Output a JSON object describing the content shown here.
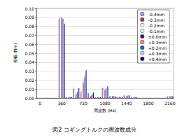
{
  "chart_data": {
    "type": "bar",
    "title": "図2 コギングトルクの周波数成分",
    "x_label": "周波数 (Hz)",
    "y_label": "振幅 (Nm)",
    "categories": [
      0,
      null,
      null,
      360,
      null,
      null,
      720,
      null,
      null,
      1080,
      null,
      null,
      1440,
      null,
      null,
      1800,
      null,
      null,
      2160
    ],
    "series": [
      {
        "name": "-0.4mm",
        "color": "#9999ff",
        "values": [
          0,
          0,
          0,
          0.088,
          0.001,
          0.012,
          0.005,
          0.006,
          0.001,
          0.012,
          0.002,
          0.001,
          0.003,
          0.001,
          0,
          0,
          0,
          0,
          0.002
        ]
      },
      {
        "name": "-0.3mm",
        "color": "#993366",
        "values": [
          0,
          0,
          0,
          0.089,
          0.001,
          0.01,
          0.008,
          0.005,
          0.001,
          0.011,
          0.002,
          0.001,
          0.003,
          0.001,
          0,
          0,
          0,
          0,
          0.002
        ]
      },
      {
        "name": "-0.2mm",
        "color": "#ffffcc",
        "values": [
          0,
          0,
          0,
          0.089,
          0.001,
          0.008,
          0.011,
          0.004,
          0.001,
          0.01,
          0.002,
          0.001,
          0.002,
          0.001,
          0,
          0,
          0,
          0,
          0.002
        ]
      },
      {
        "name": "-0.1mm",
        "color": "#ccffff",
        "values": [
          0,
          0,
          0,
          0.089,
          0.001,
          0.006,
          0.014,
          0.003,
          0.001,
          0.01,
          0.002,
          0.001,
          0.002,
          0.001,
          0,
          0,
          0,
          0,
          0.002
        ]
      },
      {
        "name": "±0.0mm",
        "color": "#660066",
        "values": [
          0,
          0,
          0,
          0.09,
          0.001,
          0.004,
          0.017,
          0.002,
          0.001,
          0.009,
          0.002,
          0.001,
          0.002,
          0.001,
          0,
          0,
          0,
          0,
          0.002
        ]
      },
      {
        "name": "+0.1mm",
        "color": "#ff8080",
        "values": [
          0,
          0,
          0,
          0.089,
          0.001,
          0.005,
          0.021,
          0.003,
          0.001,
          0.01,
          0.002,
          0.001,
          0.002,
          0.001,
          0,
          0,
          0,
          0,
          0.002
        ]
      },
      {
        "name": "+0.2mm",
        "color": "#0066cc",
        "values": [
          0,
          0,
          0,
          0.088,
          0.001,
          0.007,
          0.024,
          0.004,
          0.001,
          0.011,
          0.002,
          0.001,
          0.003,
          0.001,
          0,
          0,
          0,
          0,
          0.002
        ]
      },
      {
        "name": "+0.3mm",
        "color": "#ccccff",
        "values": [
          0,
          0,
          0,
          0.086,
          0.001,
          0.009,
          0.028,
          0.005,
          0.001,
          0.012,
          0.002,
          0.001,
          0.003,
          0.001,
          0,
          0,
          0,
          0,
          0.002
        ]
      },
      {
        "name": "+0.4mm",
        "color": "#000080",
        "values": [
          0,
          0,
          0,
          0.083,
          0.001,
          0.011,
          0.031,
          0.006,
          0.001,
          0.013,
          0.002,
          0.001,
          0.003,
          0.001,
          0,
          0,
          0,
          0,
          0.002
        ]
      }
    ],
    "ylim": [
      0,
      0.1
    ],
    "yticks": [
      {
        "value": 0,
        "label": "0.00"
      },
      {
        "value": 0.01,
        "label": "0.01"
      },
      {
        "value": 0.02,
        "label": "0.02"
      },
      {
        "value": 0.03,
        "label": "0.03"
      },
      {
        "value": 0.04,
        "label": "0.04"
      },
      {
        "value": 0.05,
        "label": "0.05"
      },
      {
        "value": 0.06,
        "label": "0.06"
      },
      {
        "value": 0.07,
        "label": "0.07"
      },
      {
        "value": 0.08,
        "label": "0.08"
      },
      {
        "value": 0.09,
        "label": "0.09"
      },
      {
        "value": 0.1,
        "label": "0.10"
      }
    ],
    "grid": true,
    "legend": "upper right"
  }
}
